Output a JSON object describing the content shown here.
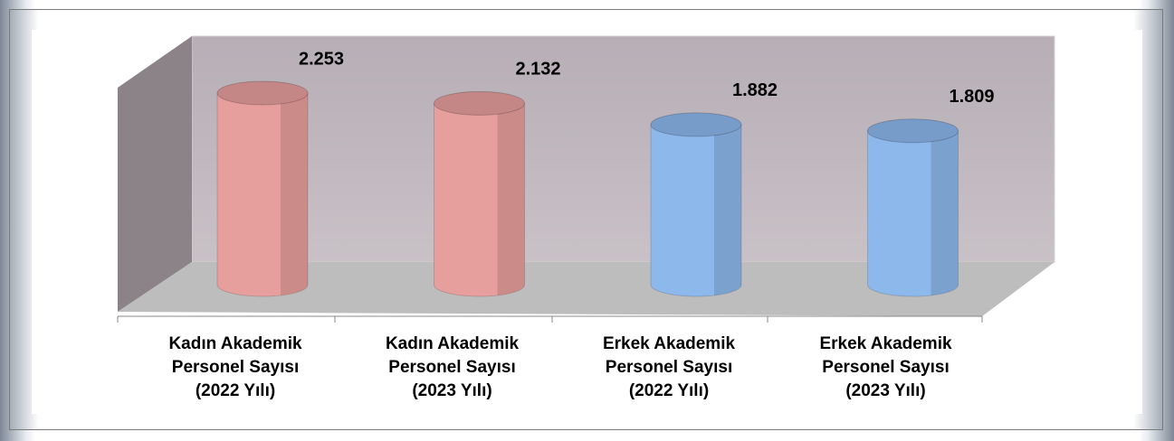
{
  "chart_data": {
    "type": "cylinder",
    "categories": [
      "Kadın Akademik Personel Sayısı (2022 Yılı)",
      "Kadın Akademik Personel Sayısı (2023 Yılı)",
      "Erkek Akademik Personel Sayısı (2022 Yılı)",
      "Erkek Akademik Personel Sayısı (2023 Yılı)"
    ],
    "values": [
      2253,
      2132,
      1882,
      1809
    ],
    "value_labels": [
      "2.253",
      "2.132",
      "1.882",
      "1.809"
    ],
    "colors": [
      "#e69f9c",
      "#e69f9c",
      "#8db8ec",
      "#8db8ec"
    ]
  }
}
